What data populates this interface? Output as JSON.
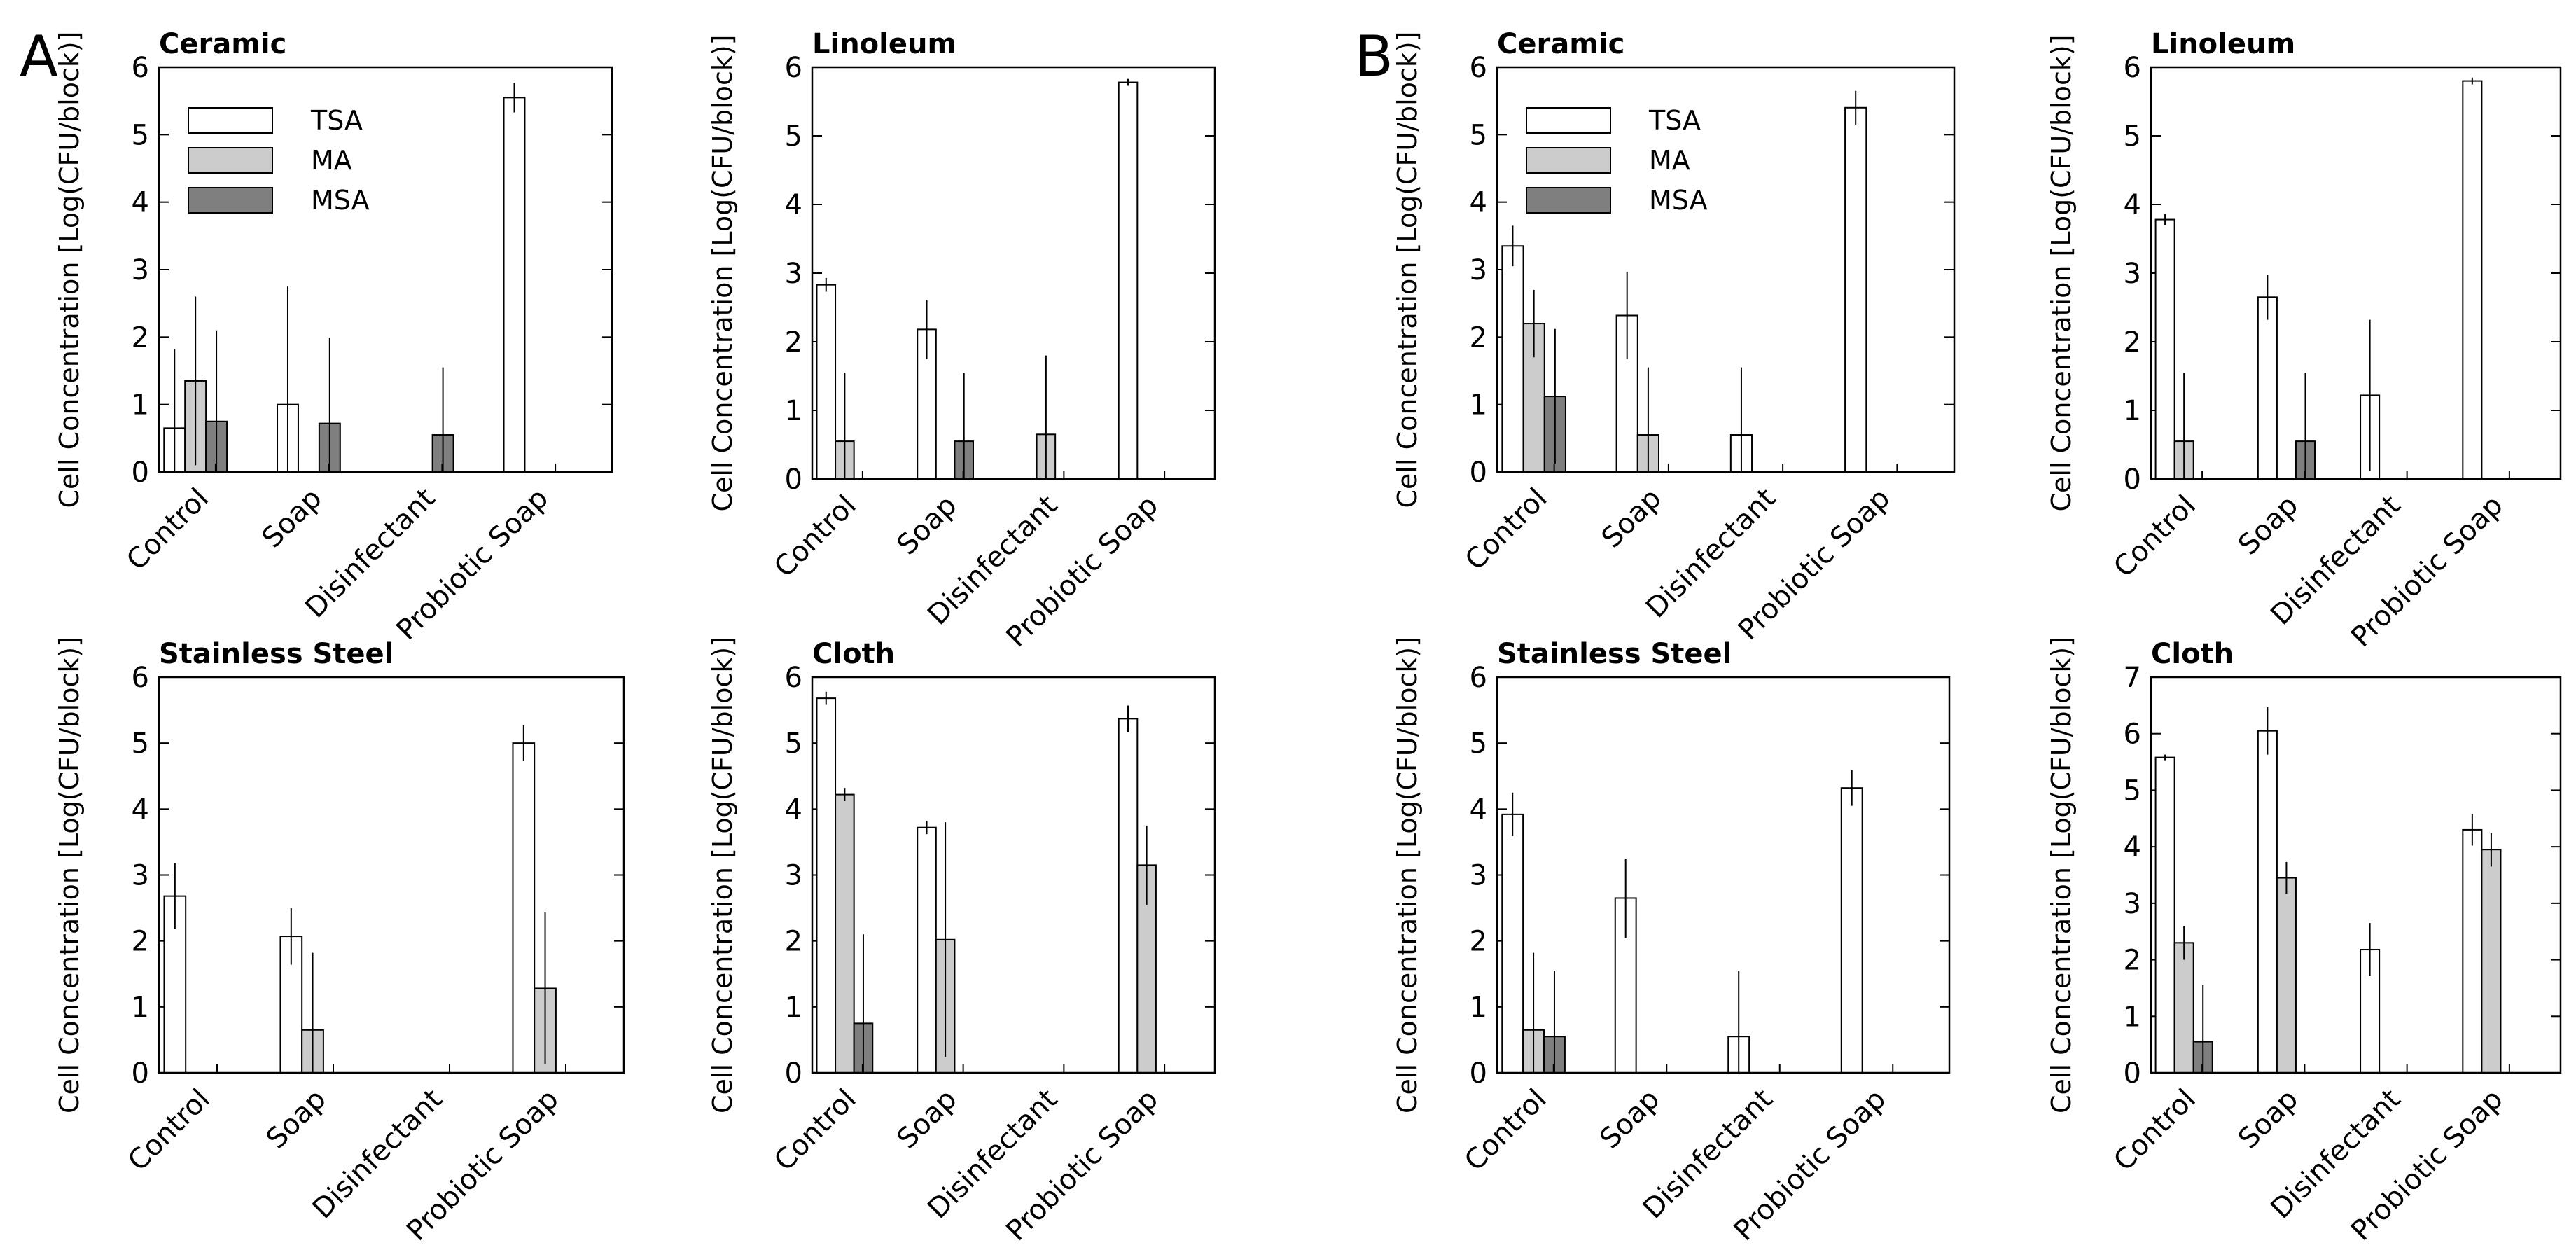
{
  "figure": {
    "panel_labels": [
      "A",
      "B"
    ],
    "legend": [
      {
        "name": "TSA",
        "color": "#ffffff"
      },
      {
        "name": "MA",
        "color": "#cccccc"
      },
      {
        "name": "MSA",
        "color": "#7f7f7f"
      }
    ]
  },
  "chart_data": [
    {
      "panel": "A",
      "type": "bar",
      "title": "Ceramic",
      "ylabel": "Cell Concentration [Log(CFU/block)]",
      "xlabel": "",
      "ylim": [
        0,
        6
      ],
      "yticks": [
        0,
        1,
        2,
        3,
        4,
        5,
        6
      ],
      "categories": [
        "Control",
        "Soap",
        "Disinfectant",
        "Probiotic Soap"
      ],
      "show_legend": true,
      "series": [
        {
          "name": "TSA",
          "values": [
            0.65,
            1.0,
            0.0,
            5.55
          ],
          "errors": [
            1.17,
            1.75,
            0,
            0.22
          ]
        },
        {
          "name": "MA",
          "values": [
            1.35,
            0.0,
            0.0,
            0.0
          ],
          "errors": [
            1.25,
            0,
            0,
            0
          ]
        },
        {
          "name": "MSA",
          "values": [
            0.75,
            0.72,
            0.55,
            0.0
          ],
          "errors": [
            1.35,
            1.27,
            1.0,
            0
          ]
        }
      ]
    },
    {
      "panel": "A",
      "type": "bar",
      "title": "Linoleum",
      "ylabel": "Cell Concentration [Log(CFU/block)]",
      "xlabel": "",
      "ylim": [
        0,
        6
      ],
      "yticks": [
        0,
        1,
        2,
        3,
        4,
        5,
        6
      ],
      "categories": [
        "Control",
        "Soap",
        "Disinfectant",
        "Probiotic Soap"
      ],
      "show_legend": false,
      "series": [
        {
          "name": "TSA",
          "values": [
            2.83,
            2.18,
            0.0,
            5.78
          ],
          "errors": [
            0.1,
            0.43,
            0,
            0.05
          ]
        },
        {
          "name": "MA",
          "values": [
            0.55,
            0.0,
            0.65,
            0.0
          ],
          "errors": [
            1.0,
            0,
            1.15,
            0
          ]
        },
        {
          "name": "MSA",
          "values": [
            0.0,
            0.55,
            0.0,
            0.0
          ],
          "errors": [
            0,
            1.0,
            0,
            0
          ]
        }
      ]
    },
    {
      "panel": "A",
      "type": "bar",
      "title": "Stainless  Steel",
      "ylabel": "Cell Concentration [Log(CFU/block)]",
      "xlabel": "",
      "ylim": [
        0,
        6
      ],
      "yticks": [
        0,
        1,
        2,
        3,
        4,
        5,
        6
      ],
      "categories": [
        "Control",
        "Soap",
        "Disinfectant",
        "Probiotic Soap"
      ],
      "show_legend": false,
      "series": [
        {
          "name": "TSA",
          "values": [
            2.68,
            2.07,
            0.0,
            5.0
          ],
          "errors": [
            0.5,
            0.43,
            0,
            0.27
          ]
        },
        {
          "name": "MA",
          "values": [
            0.0,
            0.65,
            0.0,
            1.28
          ],
          "errors": [
            0,
            1.17,
            0,
            1.15
          ]
        },
        {
          "name": "MSA",
          "values": [
            0.0,
            0.0,
            0.0,
            0.0
          ],
          "errors": [
            0,
            0,
            0,
            0
          ]
        }
      ]
    },
    {
      "panel": "A",
      "type": "bar",
      "title": "Cloth",
      "ylabel": "Cell Concentration [Log(CFU/block)]",
      "xlabel": "",
      "ylim": [
        0,
        6
      ],
      "yticks": [
        0,
        1,
        2,
        3,
        4,
        5,
        6
      ],
      "categories": [
        "Control",
        "Soap",
        "Disinfectant",
        "Probiotic Soap"
      ],
      "show_legend": false,
      "series": [
        {
          "name": "TSA",
          "values": [
            5.68,
            3.72,
            0.0,
            5.37
          ],
          "errors": [
            0.1,
            0.1,
            0,
            0.2
          ]
        },
        {
          "name": "MA",
          "values": [
            4.22,
            2.02,
            0.0,
            3.15
          ],
          "errors": [
            0.1,
            1.78,
            0,
            0.6
          ]
        },
        {
          "name": "MSA",
          "values": [
            0.75,
            0.0,
            0.0,
            0.0
          ],
          "errors": [
            1.35,
            0,
            0,
            0
          ]
        }
      ]
    },
    {
      "panel": "B",
      "type": "bar",
      "title": "Ceramic",
      "ylabel": "Cell Concentration [Log(CFU/block)]",
      "xlabel": "",
      "ylim": [
        0,
        6
      ],
      "yticks": [
        0,
        1,
        2,
        3,
        4,
        5,
        6
      ],
      "categories": [
        "Control",
        "Soap",
        "Disinfectant",
        "Probiotic Soap"
      ],
      "show_legend": true,
      "series": [
        {
          "name": "TSA",
          "values": [
            3.35,
            2.32,
            0.55,
            5.4
          ],
          "errors": [
            0.3,
            0.65,
            1.0,
            0.25
          ]
        },
        {
          "name": "MA",
          "values": [
            2.2,
            0.55,
            0.0,
            0.0
          ],
          "errors": [
            0.5,
            1.0,
            0,
            0
          ]
        },
        {
          "name": "MSA",
          "values": [
            1.12,
            0.0,
            0.0,
            0.0
          ],
          "errors": [
            1.0,
            0,
            0,
            0
          ]
        }
      ]
    },
    {
      "panel": "B",
      "type": "bar",
      "title": "Linoleum",
      "ylabel": "Cell Concentration [Log(CFU/block)]",
      "xlabel": "",
      "ylim": [
        0,
        6
      ],
      "yticks": [
        0,
        1,
        2,
        3,
        4,
        5,
        6
      ],
      "categories": [
        "Control",
        "Soap",
        "Disinfectant",
        "Probiotic Soap"
      ],
      "show_legend": false,
      "series": [
        {
          "name": "TSA",
          "values": [
            3.78,
            2.65,
            1.22,
            5.8
          ],
          "errors": [
            0.08,
            0.33,
            1.1,
            0.05
          ]
        },
        {
          "name": "MA",
          "values": [
            0.55,
            0.0,
            0.0,
            0.0
          ],
          "errors": [
            1.0,
            0,
            0,
            0
          ]
        },
        {
          "name": "MSA",
          "values": [
            0.0,
            0.55,
            0.0,
            0.0
          ],
          "errors": [
            0,
            1.0,
            0,
            0
          ]
        }
      ]
    },
    {
      "panel": "B",
      "type": "bar",
      "title": "Stainless  Steel",
      "ylabel": "Cell Concentration [Log(CFU/block)]",
      "xlabel": "",
      "ylim": [
        0,
        6
      ],
      "yticks": [
        0,
        1,
        2,
        3,
        4,
        5,
        6
      ],
      "categories": [
        "Control",
        "Soap",
        "Disinfectant",
        "Probiotic Soap"
      ],
      "show_legend": false,
      "series": [
        {
          "name": "TSA",
          "values": [
            3.92,
            2.65,
            0.55,
            4.32
          ],
          "errors": [
            0.33,
            0.6,
            1.0,
            0.27
          ]
        },
        {
          "name": "MA",
          "values": [
            0.65,
            0.0,
            0.0,
            0.0
          ],
          "errors": [
            1.17,
            0,
            0,
            0
          ]
        },
        {
          "name": "MSA",
          "values": [
            0.55,
            0.0,
            0.0,
            0.0
          ],
          "errors": [
            1.0,
            0,
            0,
            0
          ]
        }
      ]
    },
    {
      "panel": "B",
      "type": "bar",
      "title": "Cloth",
      "ylabel": "Cell Concentration [Log(CFU/block)]",
      "xlabel": "",
      "ylim": [
        0,
        7
      ],
      "yticks": [
        0,
        1,
        2,
        3,
        4,
        5,
        6,
        7
      ],
      "categories": [
        "Control",
        "Soap",
        "Disinfectant",
        "Probiotic Soap"
      ],
      "show_legend": false,
      "series": [
        {
          "name": "TSA",
          "values": [
            5.58,
            6.05,
            2.18,
            4.3
          ],
          "errors": [
            0.05,
            0.42,
            0.47,
            0.28
          ]
        },
        {
          "name": "MA",
          "values": [
            2.3,
            3.45,
            0.0,
            3.95
          ],
          "errors": [
            0.3,
            0.28,
            0,
            0.3
          ]
        },
        {
          "name": "MSA",
          "values": [
            0.55,
            0.0,
            0.0,
            0.0
          ],
          "errors": [
            1.0,
            0,
            0,
            0
          ]
        }
      ]
    }
  ]
}
